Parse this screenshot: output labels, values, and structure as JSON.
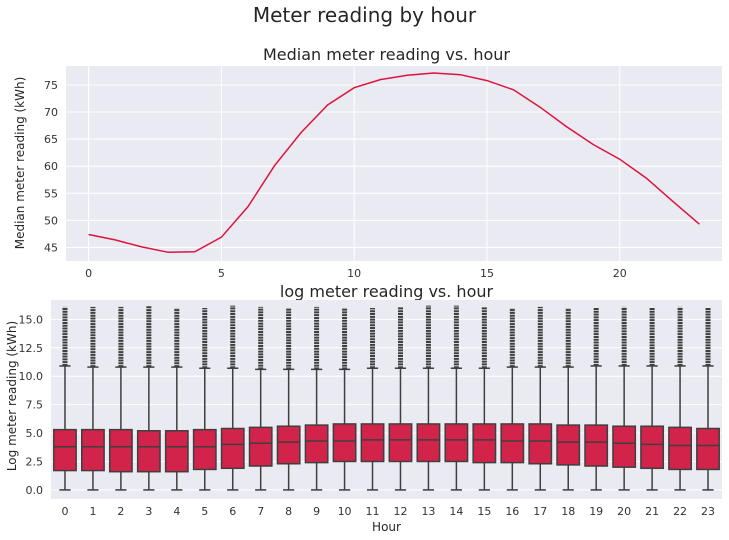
{
  "figure": {
    "title": "Meter reading by hour"
  },
  "colors": {
    "line": "#dc143c",
    "box_fill": "#d2234a",
    "box_edge": "#3f3f3f",
    "plot_bg": "#eaeaf2",
    "grid": "#ffffff"
  },
  "chart_data": [
    {
      "type": "line",
      "title": "Median meter reading vs. hour",
      "xlabel": "",
      "ylabel": "Median meter reading (kWh)",
      "xlim": [
        -0.85,
        23.85
      ],
      "ylim": [
        42.5,
        78.5
      ],
      "xticks": [
        0,
        5,
        10,
        15,
        20
      ],
      "yticks": [
        45,
        50,
        55,
        60,
        65,
        70,
        75
      ],
      "grid": true,
      "x": [
        0,
        1,
        2,
        3,
        4,
        5,
        6,
        7,
        8,
        9,
        10,
        11,
        12,
        13,
        14,
        15,
        16,
        17,
        18,
        19,
        20,
        21,
        22,
        23
      ],
      "series": [
        {
          "values": [
            47.4,
            46.4,
            45.1,
            44.1,
            44.2,
            46.9,
            52.5,
            60.1,
            66.2,
            71.3,
            74.5,
            76.0,
            76.8,
            77.2,
            76.9,
            75.8,
            74.1,
            70.9,
            67.3,
            64.0,
            61.3,
            57.8,
            53.5,
            49.3
          ]
        }
      ]
    },
    {
      "type": "box",
      "title": "log meter reading vs. hour",
      "xlabel": "Hour",
      "ylabel": "Log meter reading (kWh)",
      "ylim": [
        -0.8,
        16.7
      ],
      "yticks": [
        0.0,
        2.5,
        5.0,
        7.5,
        10.0,
        12.5,
        15.0
      ],
      "ytick_labels": [
        "0.0",
        "2.5",
        "5.0",
        "7.5",
        "10.0",
        "12.5",
        "15.0"
      ],
      "grid": true,
      "categories": [
        "0",
        "1",
        "2",
        "3",
        "4",
        "5",
        "6",
        "7",
        "8",
        "9",
        "10",
        "11",
        "12",
        "13",
        "14",
        "15",
        "16",
        "17",
        "18",
        "19",
        "20",
        "21",
        "22",
        "23"
      ],
      "boxes": [
        {
          "q1": 1.7,
          "median": 3.8,
          "q3": 5.3,
          "whisker_low": 0.0,
          "whisker_high": 10.9,
          "flier_max": 16.1
        },
        {
          "q1": 1.7,
          "median": 3.8,
          "q3": 5.3,
          "whisker_low": 0.0,
          "whisker_high": 10.8,
          "flier_max": 16.1
        },
        {
          "q1": 1.6,
          "median": 3.8,
          "q3": 5.3,
          "whisker_low": 0.0,
          "whisker_high": 10.8,
          "flier_max": 16.1
        },
        {
          "q1": 1.6,
          "median": 3.8,
          "q3": 5.2,
          "whisker_low": 0.0,
          "whisker_high": 10.8,
          "flier_max": 16.2
        },
        {
          "q1": 1.6,
          "median": 3.8,
          "q3": 5.2,
          "whisker_low": 0.0,
          "whisker_high": 10.8,
          "flier_max": 16.0
        },
        {
          "q1": 1.8,
          "median": 3.8,
          "q3": 5.3,
          "whisker_low": 0.0,
          "whisker_high": 10.7,
          "flier_max": 16.0
        },
        {
          "q1": 1.9,
          "median": 4.0,
          "q3": 5.4,
          "whisker_low": 0.0,
          "whisker_high": 10.7,
          "flier_max": 16.2
        },
        {
          "q1": 2.1,
          "median": 4.1,
          "q3": 5.5,
          "whisker_low": 0.0,
          "whisker_high": 10.6,
          "flier_max": 16.1
        },
        {
          "q1": 2.3,
          "median": 4.2,
          "q3": 5.6,
          "whisker_low": 0.0,
          "whisker_high": 10.6,
          "flier_max": 16.0
        },
        {
          "q1": 2.4,
          "median": 4.3,
          "q3": 5.7,
          "whisker_low": 0.0,
          "whisker_high": 10.6,
          "flier_max": 16.1
        },
        {
          "q1": 2.5,
          "median": 4.3,
          "q3": 5.8,
          "whisker_low": 0.0,
          "whisker_high": 10.6,
          "flier_max": 16.0
        },
        {
          "q1": 2.5,
          "median": 4.4,
          "q3": 5.8,
          "whisker_low": 0.0,
          "whisker_high": 10.7,
          "flier_max": 16.0
        },
        {
          "q1": 2.5,
          "median": 4.4,
          "q3": 5.8,
          "whisker_low": 0.0,
          "whisker_high": 10.7,
          "flier_max": 16.1
        },
        {
          "q1": 2.5,
          "median": 4.4,
          "q3": 5.8,
          "whisker_low": 0.0,
          "whisker_high": 10.7,
          "flier_max": 16.2
        },
        {
          "q1": 2.5,
          "median": 4.4,
          "q3": 5.8,
          "whisker_low": 0.0,
          "whisker_high": 10.7,
          "flier_max": 16.2
        },
        {
          "q1": 2.4,
          "median": 4.4,
          "q3": 5.8,
          "whisker_low": 0.0,
          "whisker_high": 10.7,
          "flier_max": 16.1
        },
        {
          "q1": 2.4,
          "median": 4.3,
          "q3": 5.8,
          "whisker_low": 0.0,
          "whisker_high": 10.8,
          "flier_max": 16.0
        },
        {
          "q1": 2.3,
          "median": 4.3,
          "q3": 5.8,
          "whisker_low": 0.0,
          "whisker_high": 10.8,
          "flier_max": 16.1
        },
        {
          "q1": 2.2,
          "median": 4.2,
          "q3": 5.7,
          "whisker_low": 0.0,
          "whisker_high": 10.8,
          "flier_max": 16.0
        },
        {
          "q1": 2.1,
          "median": 4.2,
          "q3": 5.7,
          "whisker_low": 0.0,
          "whisker_high": 10.9,
          "flier_max": 16.0
        },
        {
          "q1": 2.0,
          "median": 4.1,
          "q3": 5.6,
          "whisker_low": 0.0,
          "whisker_high": 10.9,
          "flier_max": 16.1
        },
        {
          "q1": 1.9,
          "median": 4.0,
          "q3": 5.6,
          "whisker_low": 0.0,
          "whisker_high": 10.9,
          "flier_max": 16.0
        },
        {
          "q1": 1.8,
          "median": 3.9,
          "q3": 5.5,
          "whisker_low": 0.0,
          "whisker_high": 10.9,
          "flier_max": 16.1
        },
        {
          "q1": 1.8,
          "median": 3.9,
          "q3": 5.4,
          "whisker_low": 0.0,
          "whisker_high": 10.9,
          "flier_max": 16.0
        }
      ]
    }
  ]
}
